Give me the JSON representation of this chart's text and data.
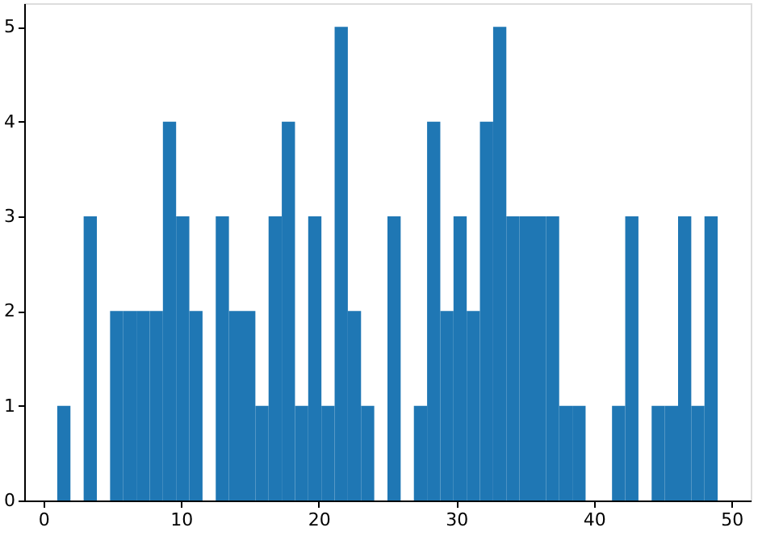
{
  "chart_data": {
    "type": "histogram",
    "color": "#1f77b4",
    "bins": [
      1.0,
      1.96,
      2.92,
      3.88,
      4.84,
      5.8,
      6.76,
      7.72,
      8.68,
      9.64,
      10.6,
      11.56,
      12.52,
      13.48,
      14.44,
      15.4,
      16.36,
      17.32,
      18.28,
      19.24,
      20.2,
      21.16,
      22.12,
      23.08,
      24.04,
      25.0,
      25.96,
      26.92,
      27.88,
      28.84,
      29.8,
      30.76,
      31.72,
      32.68,
      33.64,
      34.6,
      35.56,
      36.52,
      37.48,
      38.44,
      39.4,
      40.36,
      41.32,
      42.28,
      43.24,
      44.2,
      45.16,
      46.12,
      47.08,
      48.04,
      49.0
    ],
    "values": [
      1,
      0,
      3,
      0,
      2,
      2,
      2,
      2,
      4,
      3,
      2,
      0,
      3,
      2,
      2,
      1,
      3,
      4,
      1,
      3,
      1,
      5,
      2,
      1,
      0,
      3,
      0,
      1,
      4,
      2,
      3,
      2,
      4,
      5,
      3,
      3,
      3,
      3,
      1,
      1,
      0,
      0,
      1,
      3,
      0,
      1,
      1,
      3,
      1,
      3
    ],
    "xlim": [
      -1.4,
      51.4
    ],
    "ylim": [
      0,
      5.25
    ],
    "xticks": [
      0,
      10,
      20,
      30,
      40,
      50
    ],
    "yticks": [
      0,
      1,
      2,
      3,
      4,
      5
    ],
    "grid": false
  }
}
